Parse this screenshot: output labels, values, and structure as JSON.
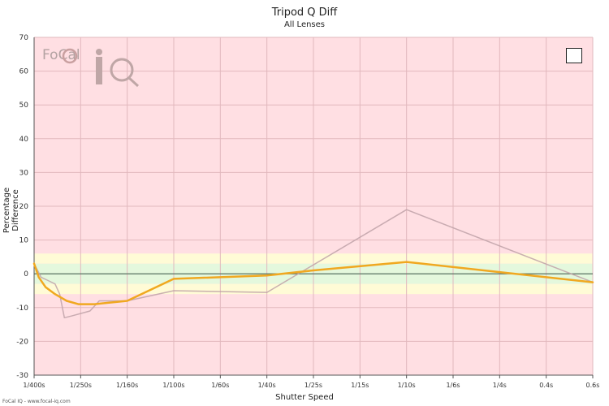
{
  "chart_data": {
    "type": "line",
    "title": "Tripod Q Diff",
    "subtitle": "All Lenses",
    "xlabel": "Shutter Speed",
    "ylabel": "Percentage Difference",
    "x_ticks": [
      "1/400s",
      "1/250s",
      "1/160s",
      "1/100s",
      "1/60s",
      "1/40s",
      "1/25s",
      "1/15s",
      "1/10s",
      "1/6s",
      "1/4s",
      "0.4s",
      "0.6s"
    ],
    "ylim": [
      -30,
      70
    ],
    "y_ticks": [
      -30,
      -20,
      -10,
      0,
      10,
      20,
      30,
      40,
      50,
      60,
      70
    ],
    "bands": [
      {
        "from": 3,
        "to": 6,
        "color": "#fffbd6"
      },
      {
        "from": -3,
        "to": 3,
        "color": "#e4f8dd"
      },
      {
        "from": -6,
        "to": -3,
        "color": "#fffbd6"
      }
    ],
    "background_color": "#ffdfe3",
    "grid": true,
    "series": [
      {
        "values": [
          [
            0.0,
            3
          ],
          [
            0.1,
            -1
          ],
          [
            0.25,
            -4
          ],
          [
            0.45,
            -6
          ],
          [
            0.7,
            -8
          ],
          [
            0.95,
            -9
          ],
          [
            1.3,
            -9
          ],
          [
            2.0,
            -8
          ],
          [
            3.0,
            -1.5
          ],
          [
            5.0,
            -0.5
          ],
          [
            6.0,
            1
          ],
          [
            8.0,
            3.5
          ],
          [
            10.0,
            0.5
          ],
          [
            12.0,
            -2.5
          ]
        ],
        "color": "#f0a820",
        "width": 2.5
      },
      {
        "values": [
          [
            0.0,
            3
          ],
          [
            0.15,
            -1
          ],
          [
            0.3,
            -2
          ],
          [
            0.45,
            -3
          ],
          [
            0.55,
            -6
          ],
          [
            0.65,
            -13
          ],
          [
            0.8,
            -12.5
          ],
          [
            1.2,
            -11
          ],
          [
            1.4,
            -8
          ],
          [
            2.0,
            -8
          ],
          [
            3.0,
            -5
          ],
          [
            5.0,
            -5.5
          ],
          [
            8.0,
            19
          ],
          [
            12.0,
            -2.5
          ]
        ],
        "color": "#bfa2a8",
        "width": 1.5
      }
    ]
  },
  "logo": {
    "text": "FoCal",
    "mark": "iQ"
  },
  "footer": "FoCal IQ - www.focal-iq.com"
}
